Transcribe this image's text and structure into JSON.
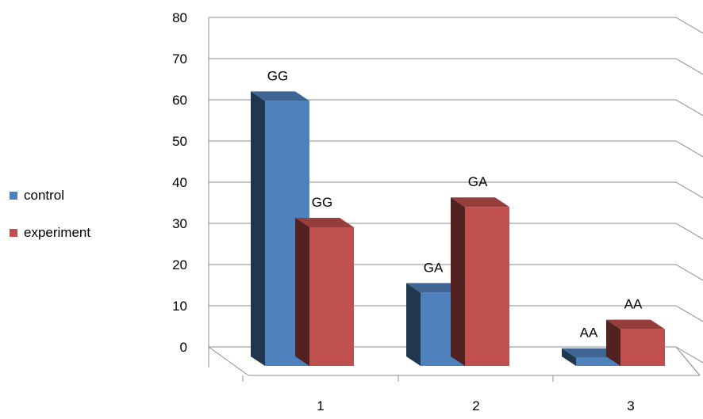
{
  "chart_data": {
    "type": "bar",
    "title": "",
    "xlabel": "",
    "ylabel": "",
    "categories": [
      "1",
      "2",
      "3"
    ],
    "series": [
      {
        "name": "control",
        "values": [
          65,
          18,
          2
        ],
        "labels": [
          "GG",
          "GA",
          "AA"
        ],
        "color": "#4F81BD"
      },
      {
        "name": "experiment",
        "values": [
          34,
          39,
          9
        ],
        "labels": [
          "GG",
          "GA",
          "AA"
        ],
        "color": "#C0504D"
      }
    ],
    "ylim": [
      0,
      80
    ],
    "yticks": [
      "0",
      "10",
      "20",
      "30",
      "40",
      "50",
      "60",
      "70",
      "80"
    ],
    "grid": true,
    "legend": "left",
    "style": "3d-clustered-column"
  }
}
